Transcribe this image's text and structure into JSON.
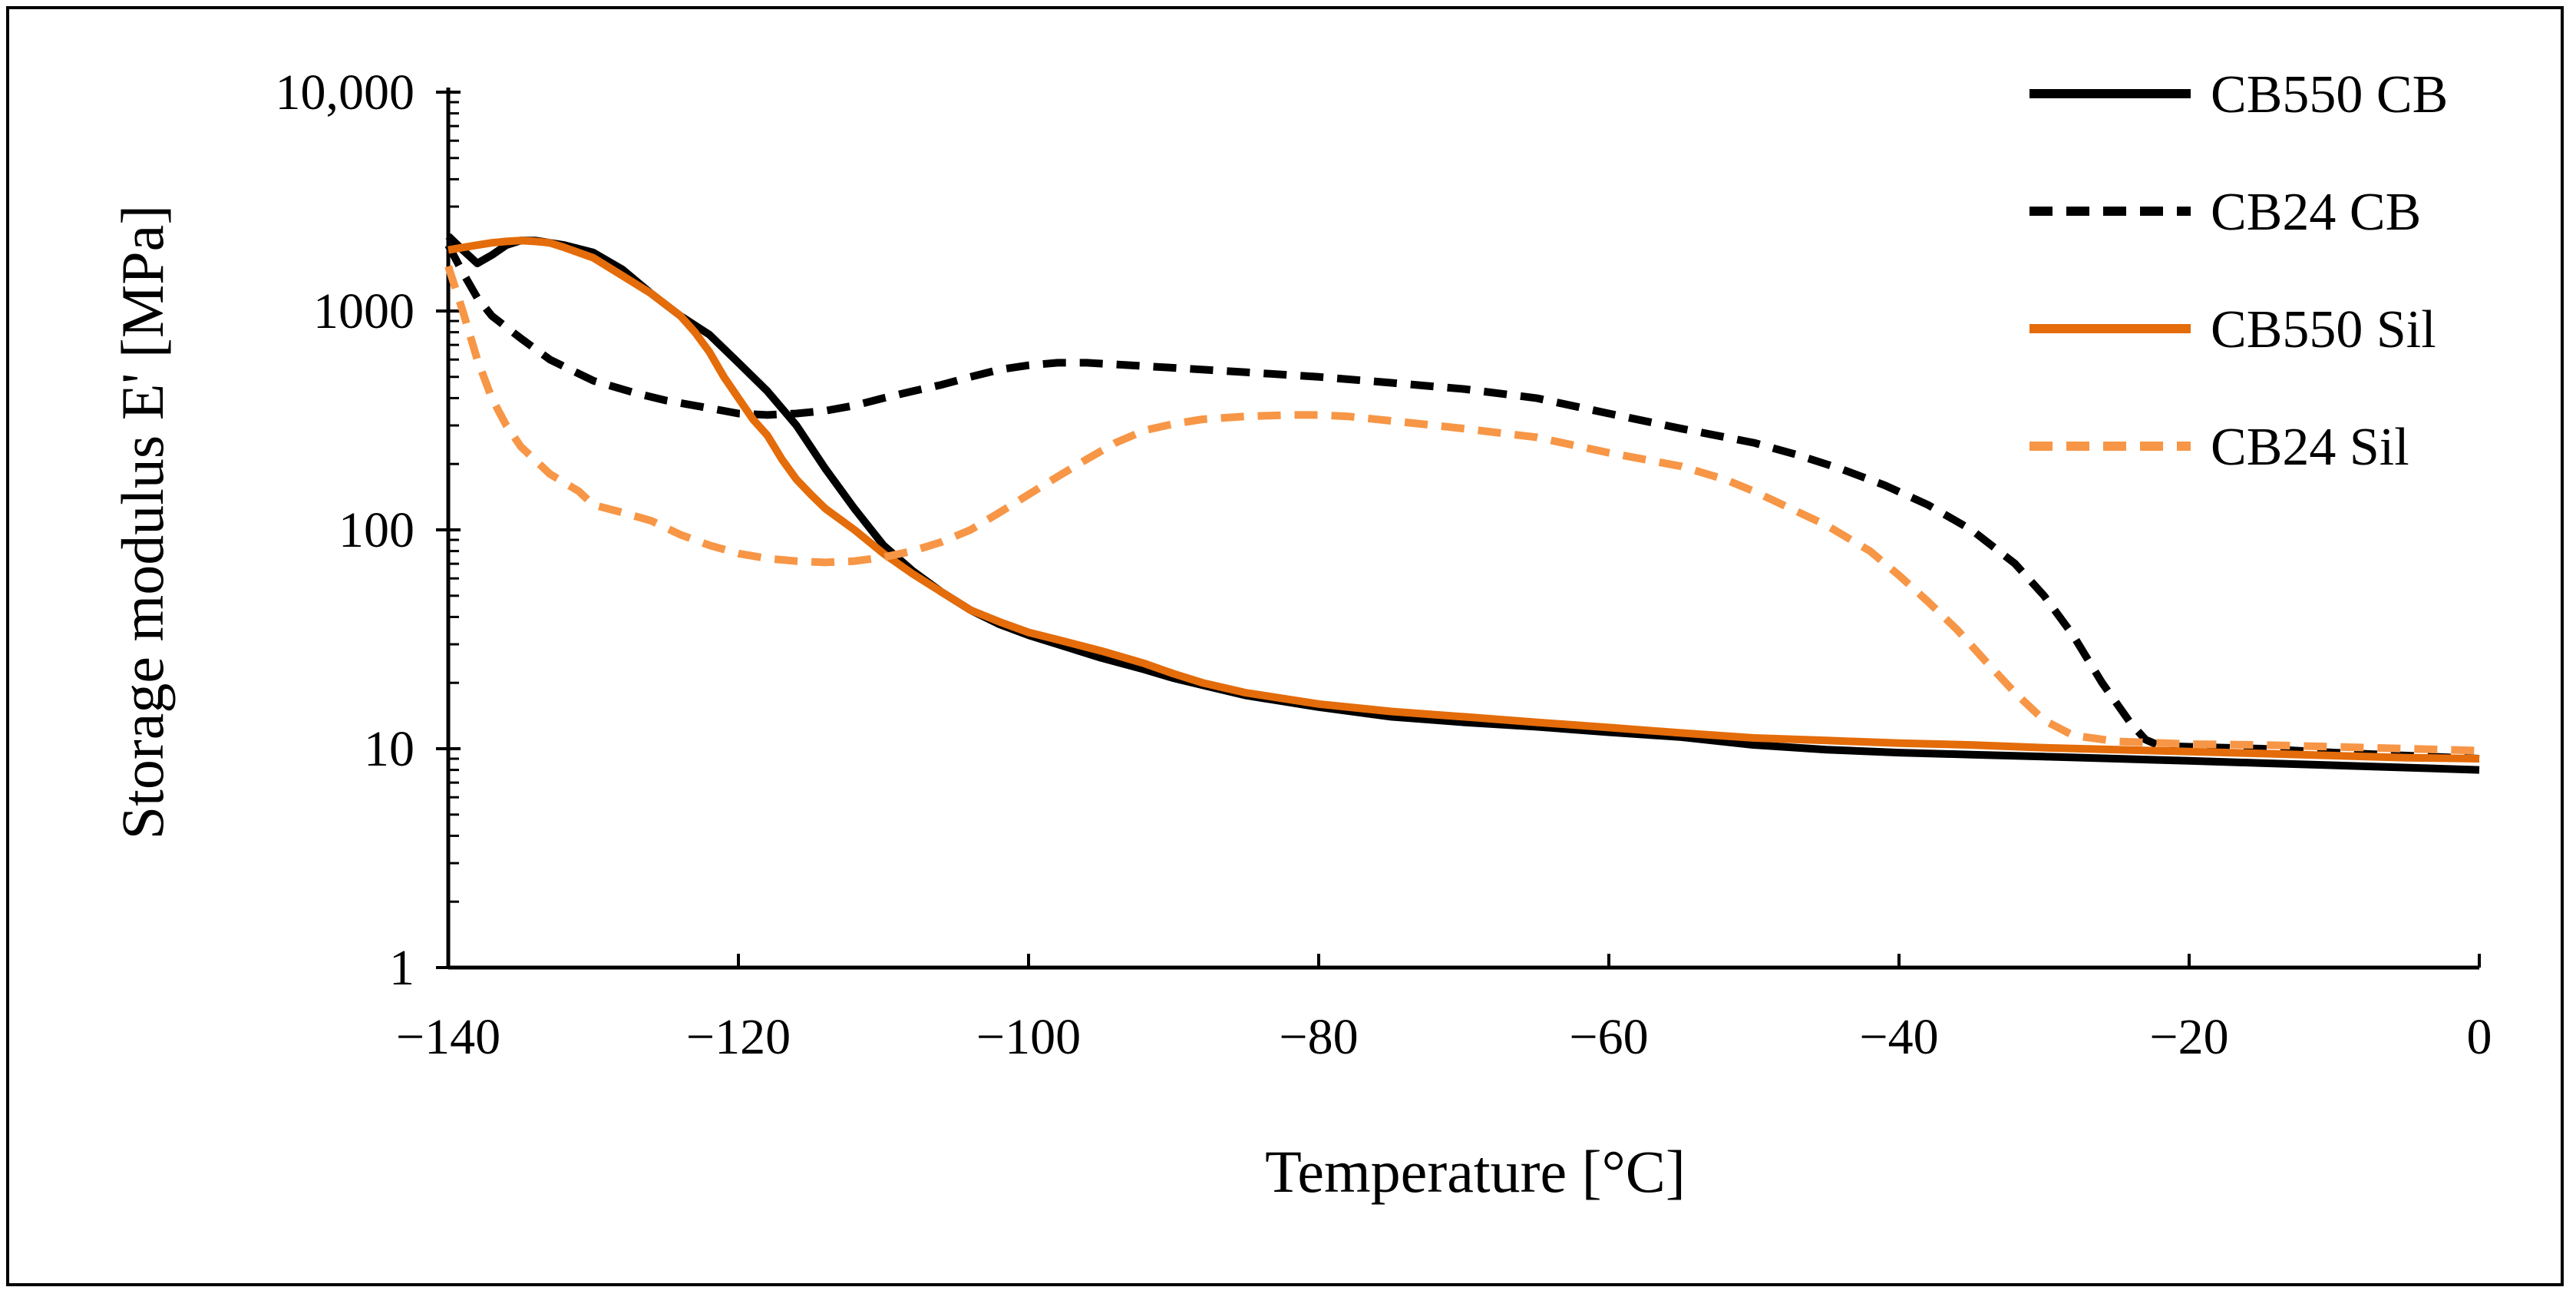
{
  "chart_data": {
    "type": "line",
    "title": "",
    "xlabel": "Temperature [°C]",
    "ylabel": "Storage modulus E' [MPa]",
    "xlim": [
      -140,
      0
    ],
    "ylim": [
      1,
      10000
    ],
    "yscale": "log",
    "x_ticks": [
      -140,
      -120,
      -100,
      -80,
      -60,
      -40,
      -20,
      0
    ],
    "x_tick_labels": [
      "−140",
      "−120",
      "−100",
      "−80",
      "−60",
      "−40",
      "−20",
      "0"
    ],
    "y_ticks": [
      1,
      10,
      100,
      1000,
      10000
    ],
    "y_tick_labels": [
      "1",
      "10",
      "100",
      "1000",
      "10,000"
    ],
    "grid": false,
    "legend_position": "top-right",
    "series": [
      {
        "name": "CB550 CB",
        "color": "#000000",
        "dash": "solid",
        "points": [
          [
            -140,
            2200
          ],
          [
            -139,
            1900
          ],
          [
            -138,
            1650
          ],
          [
            -137,
            1800
          ],
          [
            -136,
            2000
          ],
          [
            -135,
            2100
          ],
          [
            -134,
            2100
          ],
          [
            -133,
            2050
          ],
          [
            -132,
            2000
          ],
          [
            -130,
            1850
          ],
          [
            -128,
            1550
          ],
          [
            -126,
            1200
          ],
          [
            -124,
            950
          ],
          [
            -122,
            780
          ],
          [
            -120,
            580
          ],
          [
            -118,
            430
          ],
          [
            -116,
            300
          ],
          [
            -114,
            190
          ],
          [
            -112,
            125
          ],
          [
            -110,
            85
          ],
          [
            -108,
            65
          ],
          [
            -106,
            52
          ],
          [
            -104,
            43
          ],
          [
            -102,
            37
          ],
          [
            -100,
            33
          ],
          [
            -98,
            30
          ],
          [
            -95,
            26
          ],
          [
            -92,
            23
          ],
          [
            -90,
            21
          ],
          [
            -88,
            19.5
          ],
          [
            -85,
            17.5
          ],
          [
            -80,
            15.5
          ],
          [
            -75,
            14
          ],
          [
            -70,
            13.2
          ],
          [
            -65,
            12.6
          ],
          [
            -60,
            11.9
          ],
          [
            -55,
            11.3
          ],
          [
            -50,
            10.4
          ],
          [
            -45,
            9.9
          ],
          [
            -40,
            9.6
          ],
          [
            -35,
            9.4
          ],
          [
            -30,
            9.2
          ],
          [
            -25,
            9.0
          ],
          [
            -20,
            8.8
          ],
          [
            -15,
            8.6
          ],
          [
            -10,
            8.4
          ],
          [
            -5,
            8.2
          ],
          [
            0,
            8.0
          ]
        ]
      },
      {
        "name": "CB24 CB",
        "color": "#000000",
        "dash": "dashed",
        "points": [
          [
            -140,
            2000
          ],
          [
            -139,
            1500
          ],
          [
            -138,
            1150
          ],
          [
            -137,
            950
          ],
          [
            -135,
            750
          ],
          [
            -133,
            600
          ],
          [
            -130,
            480
          ],
          [
            -127,
            420
          ],
          [
            -125,
            390
          ],
          [
            -122,
            360
          ],
          [
            -120,
            340
          ],
          [
            -118,
            335
          ],
          [
            -116,
            340
          ],
          [
            -114,
            350
          ],
          [
            -112,
            370
          ],
          [
            -110,
            400
          ],
          [
            -108,
            430
          ],
          [
            -106,
            460
          ],
          [
            -104,
            500
          ],
          [
            -102,
            540
          ],
          [
            -100,
            565
          ],
          [
            -98,
            580
          ],
          [
            -96,
            580
          ],
          [
            -94,
            570
          ],
          [
            -92,
            560
          ],
          [
            -90,
            550
          ],
          [
            -85,
            525
          ],
          [
            -80,
            500
          ],
          [
            -75,
            470
          ],
          [
            -70,
            440
          ],
          [
            -65,
            400
          ],
          [
            -60,
            340
          ],
          [
            -55,
            290
          ],
          [
            -50,
            250
          ],
          [
            -47,
            220
          ],
          [
            -44,
            190
          ],
          [
            -41,
            160
          ],
          [
            -38,
            130
          ],
          [
            -35,
            100
          ],
          [
            -32,
            70
          ],
          [
            -30,
            50
          ],
          [
            -28,
            33
          ],
          [
            -26,
            20
          ],
          [
            -24,
            13
          ],
          [
            -23,
            11
          ],
          [
            -22,
            10.3
          ],
          [
            -20,
            10.2
          ],
          [
            -15,
            10.0
          ],
          [
            -10,
            9.6
          ],
          [
            -5,
            9.3
          ],
          [
            0,
            9.0
          ]
        ]
      },
      {
        "name": "CB550 Sil",
        "color": "#e46c0a",
        "dash": "solid",
        "points": [
          [
            -140,
            1900
          ],
          [
            -139,
            1950
          ],
          [
            -138,
            2000
          ],
          [
            -137,
            2050
          ],
          [
            -136,
            2080
          ],
          [
            -135,
            2100
          ],
          [
            -134,
            2080
          ],
          [
            -133,
            2050
          ],
          [
            -132,
            1950
          ],
          [
            -130,
            1750
          ],
          [
            -128,
            1450
          ],
          [
            -126,
            1200
          ],
          [
            -124,
            950
          ],
          [
            -123,
            800
          ],
          [
            -122,
            650
          ],
          [
            -121,
            500
          ],
          [
            -120,
            400
          ],
          [
            -119,
            320
          ],
          [
            -118,
            270
          ],
          [
            -117,
            210
          ],
          [
            -116,
            170
          ],
          [
            -115,
            145
          ],
          [
            -114,
            125
          ],
          [
            -112,
            100
          ],
          [
            -110,
            78
          ],
          [
            -108,
            63
          ],
          [
            -106,
            52
          ],
          [
            -104,
            43
          ],
          [
            -102,
            38
          ],
          [
            -100,
            34
          ],
          [
            -98,
            31.5
          ],
          [
            -95,
            28
          ],
          [
            -92,
            24.5
          ],
          [
            -90,
            22
          ],
          [
            -88,
            20
          ],
          [
            -85,
            18
          ],
          [
            -80,
            16
          ],
          [
            -75,
            14.8
          ],
          [
            -70,
            14
          ],
          [
            -65,
            13.2
          ],
          [
            -60,
            12.5
          ],
          [
            -55,
            11.8
          ],
          [
            -50,
            11.2
          ],
          [
            -45,
            10.9
          ],
          [
            -40,
            10.6
          ],
          [
            -35,
            10.4
          ],
          [
            -30,
            10.1
          ],
          [
            -25,
            9.9
          ],
          [
            -20,
            9.7
          ],
          [
            -15,
            9.5
          ],
          [
            -10,
            9.3
          ],
          [
            -5,
            9.1
          ],
          [
            0,
            9.0
          ]
        ]
      },
      {
        "name": "CB24 Sil",
        "color": "#f79646",
        "dash": "dashed",
        "points": [
          [
            -140,
            1600
          ],
          [
            -139,
            1000
          ],
          [
            -138,
            600
          ],
          [
            -137,
            400
          ],
          [
            -136,
            300
          ],
          [
            -135,
            240
          ],
          [
            -133,
            180
          ],
          [
            -131,
            150
          ],
          [
            -130,
            130
          ],
          [
            -128,
            120
          ],
          [
            -126,
            110
          ],
          [
            -124,
            95
          ],
          [
            -122,
            85
          ],
          [
            -120,
            78
          ],
          [
            -118,
            74
          ],
          [
            -116,
            72
          ],
          [
            -114,
            71
          ],
          [
            -112,
            72
          ],
          [
            -110,
            75
          ],
          [
            -108,
            80
          ],
          [
            -106,
            88
          ],
          [
            -104,
            100
          ],
          [
            -102,
            120
          ],
          [
            -100,
            145
          ],
          [
            -98,
            175
          ],
          [
            -96,
            210
          ],
          [
            -94,
            250
          ],
          [
            -92,
            285
          ],
          [
            -90,
            305
          ],
          [
            -88,
            320
          ],
          [
            -85,
            330
          ],
          [
            -82,
            335
          ],
          [
            -80,
            335
          ],
          [
            -78,
            330
          ],
          [
            -75,
            315
          ],
          [
            -72,
            300
          ],
          [
            -70,
            290
          ],
          [
            -65,
            265
          ],
          [
            -60,
            225
          ],
          [
            -55,
            195
          ],
          [
            -52,
            170
          ],
          [
            -50,
            150
          ],
          [
            -48,
            130
          ],
          [
            -45,
            105
          ],
          [
            -42,
            80
          ],
          [
            -40,
            62
          ],
          [
            -38,
            47
          ],
          [
            -36,
            35
          ],
          [
            -34,
            25
          ],
          [
            -32,
            18
          ],
          [
            -30,
            13.5
          ],
          [
            -28,
            11.5
          ],
          [
            -25,
            10.8
          ],
          [
            -20,
            10.5
          ],
          [
            -15,
            10.4
          ],
          [
            -10,
            10.2
          ],
          [
            -5,
            10.0
          ],
          [
            0,
            9.8
          ]
        ]
      }
    ]
  }
}
